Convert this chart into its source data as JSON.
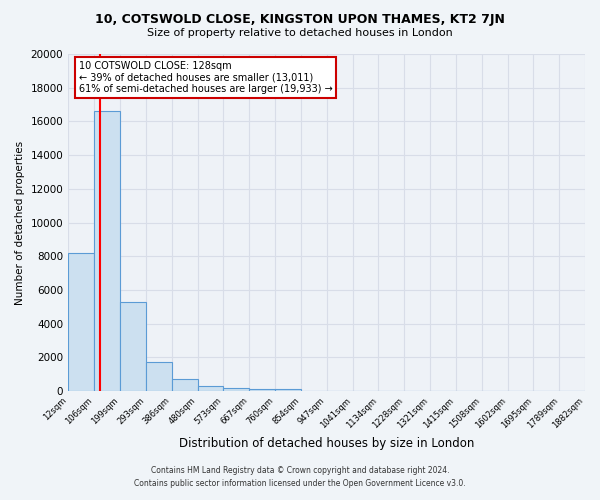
{
  "title": "10, COTSWOLD CLOSE, KINGSTON UPON THAMES, KT2 7JN",
  "subtitle": "Size of property relative to detached houses in London",
  "xlabel": "Distribution of detached houses by size in London",
  "ylabel": "Number of detached properties",
  "bar_values": [
    8200,
    16600,
    5300,
    1750,
    700,
    300,
    200,
    150,
    100,
    0,
    0,
    0,
    0,
    0,
    0,
    0,
    0,
    0,
    0,
    0
  ],
  "bin_labels": [
    "12sqm",
    "106sqm",
    "199sqm",
    "293sqm",
    "386sqm",
    "480sqm",
    "573sqm",
    "667sqm",
    "760sqm",
    "854sqm",
    "947sqm",
    "1041sqm",
    "1134sqm",
    "1228sqm",
    "1321sqm",
    "1415sqm",
    "1508sqm",
    "1602sqm",
    "1695sqm",
    "1789sqm",
    "1882sqm"
  ],
  "bar_color": "#cce0f0",
  "bar_edge_color": "#5b9bd5",
  "red_line_x": 128,
  "bin_edges": [
    12,
    106,
    199,
    293,
    386,
    480,
    573,
    667,
    760,
    854,
    947,
    1041,
    1134,
    1228,
    1321,
    1415,
    1508,
    1602,
    1695,
    1789,
    1882
  ],
  "annotation_title": "10 COTSWOLD CLOSE: 128sqm",
  "annotation_line1": "← 39% of detached houses are smaller (13,011)",
  "annotation_line2": "61% of semi-detached houses are larger (19,933) →",
  "annotation_box_color": "#ffffff",
  "annotation_box_edge": "#cc0000",
  "footer1": "Contains HM Land Registry data © Crown copyright and database right 2024.",
  "footer2": "Contains public sector information licensed under the Open Government Licence v3.0.",
  "ylim": [
    0,
    20000
  ],
  "yticks": [
    0,
    2000,
    4000,
    6000,
    8000,
    10000,
    12000,
    14000,
    16000,
    18000,
    20000
  ],
  "bg_color": "#f0f4f8",
  "plot_bg_color": "#eef2f7",
  "grid_color": "#d8dde8"
}
